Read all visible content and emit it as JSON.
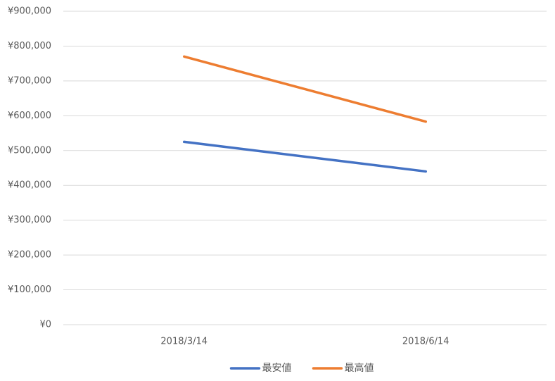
{
  "chart_data": {
    "type": "line",
    "categories": [
      "2018/3/14",
      "2018/6/14"
    ],
    "series": [
      {
        "name": "最安値",
        "color": "#4472c4",
        "values": [
          525000,
          440000
        ]
      },
      {
        "name": "最高値",
        "color": "#ed7d31",
        "values": [
          770000,
          583000
        ]
      }
    ],
    "ylim": [
      0,
      900000
    ],
    "yticks": [
      {
        "value": 0,
        "label": "¥0"
      },
      {
        "value": 100000,
        "label": "¥100,000"
      },
      {
        "value": 200000,
        "label": "¥200,000"
      },
      {
        "value": 300000,
        "label": "¥300,000"
      },
      {
        "value": 400000,
        "label": "¥400,000"
      },
      {
        "value": 500000,
        "label": "¥500,000"
      },
      {
        "value": 600000,
        "label": "¥600,000"
      },
      {
        "value": 700000,
        "label": "¥700,000"
      },
      {
        "value": 800000,
        "label": "¥800,000"
      },
      {
        "value": 900000,
        "label": "¥900,000"
      }
    ],
    "grid": true,
    "legend": "bottom"
  }
}
